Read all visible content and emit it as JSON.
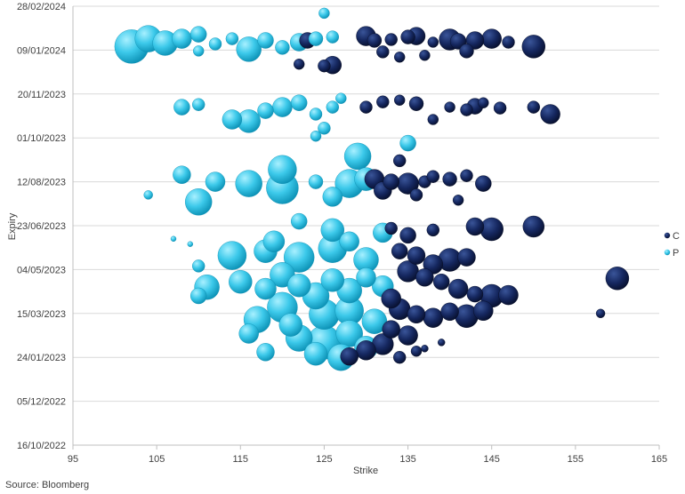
{
  "chart_data": {
    "type": "scatter",
    "subtype": "bubble-3d",
    "xlabel": "Strike",
    "ylabel": "Expiry",
    "xlim": [
      95,
      165
    ],
    "ylim": [
      "2022-10-16",
      "2024-02-28"
    ],
    "x_ticks": [
      95,
      105,
      115,
      125,
      135,
      145,
      155,
      165
    ],
    "y_ticks": [
      "28/02/2024",
      "09/01/2024",
      "20/11/2023",
      "01/10/2023",
      "12/08/2023",
      "23/06/2023",
      "04/05/2023",
      "15/03/2023",
      "24/01/2023",
      "05/12/2022",
      "16/10/2022"
    ],
    "grid": "horizontal",
    "legend_position": "right",
    "series": [
      {
        "name": "C",
        "color": "#0f1f52",
        "points": [
          {
            "x": 123,
            "y": "2024-01-20",
            "s": 18
          },
          {
            "x": 130,
            "y": "2024-01-25",
            "s": 22
          },
          {
            "x": 131,
            "y": "2024-01-20",
            "s": 16
          },
          {
            "x": 133,
            "y": "2024-01-21",
            "s": 14
          },
          {
            "x": 135,
            "y": "2024-01-24",
            "s": 16
          },
          {
            "x": 136,
            "y": "2024-01-25",
            "s": 20
          },
          {
            "x": 138,
            "y": "2024-01-18",
            "s": 12
          },
          {
            "x": 140,
            "y": "2024-01-21",
            "s": 24
          },
          {
            "x": 141,
            "y": "2024-01-19",
            "s": 18
          },
          {
            "x": 143,
            "y": "2024-01-20",
            "s": 20
          },
          {
            "x": 145,
            "y": "2024-01-22",
            "s": 22
          },
          {
            "x": 147,
            "y": "2024-01-18",
            "s": 14
          },
          {
            "x": 150,
            "y": "2024-01-13",
            "s": 26
          },
          {
            "x": 132,
            "y": "2024-01-07",
            "s": 14
          },
          {
            "x": 134,
            "y": "2024-01-01",
            "s": 12
          },
          {
            "x": 137,
            "y": "2024-01-03",
            "s": 12
          },
          {
            "x": 142,
            "y": "2024-01-08",
            "s": 16
          },
          {
            "x": 126,
            "y": "2023-12-23",
            "s": 20
          },
          {
            "x": 125,
            "y": "2023-12-22",
            "s": 14
          },
          {
            "x": 122,
            "y": "2023-12-24",
            "s": 12
          },
          {
            "x": 130,
            "y": "2023-11-05",
            "s": 14
          },
          {
            "x": 132,
            "y": "2023-11-11",
            "s": 14
          },
          {
            "x": 134,
            "y": "2023-11-13",
            "s": 12
          },
          {
            "x": 136,
            "y": "2023-11-09",
            "s": 16
          },
          {
            "x": 140,
            "y": "2023-11-05",
            "s": 12
          },
          {
            "x": 142,
            "y": "2023-11-02",
            "s": 14
          },
          {
            "x": 143,
            "y": "2023-11-06",
            "s": 18
          },
          {
            "x": 144,
            "y": "2023-11-10",
            "s": 12
          },
          {
            "x": 146,
            "y": "2023-11-04",
            "s": 14
          },
          {
            "x": 150,
            "y": "2023-11-05",
            "s": 14
          },
          {
            "x": 152,
            "y": "2023-10-28",
            "s": 22
          },
          {
            "x": 138,
            "y": "2023-10-22",
            "s": 12
          },
          {
            "x": 131,
            "y": "2023-08-15",
            "s": 22
          },
          {
            "x": 133,
            "y": "2023-08-12",
            "s": 18
          },
          {
            "x": 135,
            "y": "2023-08-10",
            "s": 24
          },
          {
            "x": 137,
            "y": "2023-08-12",
            "s": 14
          },
          {
            "x": 138,
            "y": "2023-08-18",
            "s": 14
          },
          {
            "x": 140,
            "y": "2023-08-15",
            "s": 16
          },
          {
            "x": 142,
            "y": "2023-08-19",
            "s": 14
          },
          {
            "x": 144,
            "y": "2023-08-10",
            "s": 18
          },
          {
            "x": 134,
            "y": "2023-09-05",
            "s": 14
          },
          {
            "x": 132,
            "y": "2023-08-02",
            "s": 20
          },
          {
            "x": 136,
            "y": "2023-07-28",
            "s": 14
          },
          {
            "x": 141,
            "y": "2023-07-22",
            "s": 12
          },
          {
            "x": 143,
            "y": "2023-06-22",
            "s": 20
          },
          {
            "x": 145,
            "y": "2023-06-19",
            "s": 26
          },
          {
            "x": 150,
            "y": "2023-06-22",
            "s": 24
          },
          {
            "x": 133,
            "y": "2023-06-20",
            "s": 14
          },
          {
            "x": 135,
            "y": "2023-06-12",
            "s": 18
          },
          {
            "x": 138,
            "y": "2023-06-18",
            "s": 14
          },
          {
            "x": 134,
            "y": "2023-05-25",
            "s": 18
          },
          {
            "x": 136,
            "y": "2023-05-20",
            "s": 20
          },
          {
            "x": 138,
            "y": "2023-05-10",
            "s": 22
          },
          {
            "x": 140,
            "y": "2023-05-15",
            "s": 26
          },
          {
            "x": 142,
            "y": "2023-05-18",
            "s": 20
          },
          {
            "x": 135,
            "y": "2023-05-02",
            "s": 24
          },
          {
            "x": 137,
            "y": "2023-04-25",
            "s": 20
          },
          {
            "x": 139,
            "y": "2023-04-20",
            "s": 18
          },
          {
            "x": 141,
            "y": "2023-04-12",
            "s": 22
          },
          {
            "x": 143,
            "y": "2023-04-06",
            "s": 18
          },
          {
            "x": 145,
            "y": "2023-04-04",
            "s": 26
          },
          {
            "x": 147,
            "y": "2023-04-05",
            "s": 22
          },
          {
            "x": 133,
            "y": "2023-04-01",
            "s": 22
          },
          {
            "x": 134,
            "y": "2023-03-20",
            "s": 24
          },
          {
            "x": 136,
            "y": "2023-03-14",
            "s": 20
          },
          {
            "x": 138,
            "y": "2023-03-10",
            "s": 22
          },
          {
            "x": 140,
            "y": "2023-03-17",
            "s": 20
          },
          {
            "x": 142,
            "y": "2023-03-12",
            "s": 26
          },
          {
            "x": 144,
            "y": "2023-03-18",
            "s": 22
          },
          {
            "x": 133,
            "y": "2023-02-25",
            "s": 20
          },
          {
            "x": 135,
            "y": "2023-02-18",
            "s": 22
          },
          {
            "x": 132,
            "y": "2023-02-08",
            "s": 24
          },
          {
            "x": 130,
            "y": "2023-02-01",
            "s": 22
          },
          {
            "x": 134,
            "y": "2023-01-24",
            "s": 14
          },
          {
            "x": 136,
            "y": "2023-01-31",
            "s": 12
          },
          {
            "x": 160,
            "y": "2023-04-24",
            "s": 26
          },
          {
            "x": 158,
            "y": "2023-03-15",
            "s": 10
          },
          {
            "x": 139,
            "y": "2023-02-10",
            "s": 8
          },
          {
            "x": 137,
            "y": "2023-02-03",
            "s": 8
          },
          {
            "x": 128,
            "y": "2023-01-25",
            "s": 20
          }
        ]
      },
      {
        "name": "P",
        "color": "#2ac3e6",
        "points": [
          {
            "x": 102,
            "y": "2024-01-13",
            "s": 38
          },
          {
            "x": 104,
            "y": "2024-01-22",
            "s": 30
          },
          {
            "x": 106,
            "y": "2024-01-17",
            "s": 28
          },
          {
            "x": 108,
            "y": "2024-01-22",
            "s": 22
          },
          {
            "x": 110,
            "y": "2024-01-27",
            "s": 18
          },
          {
            "x": 112,
            "y": "2024-01-16",
            "s": 14
          },
          {
            "x": 114,
            "y": "2024-01-22",
            "s": 14
          },
          {
            "x": 116,
            "y": "2024-01-10",
            "s": 28
          },
          {
            "x": 118,
            "y": "2024-01-20",
            "s": 18
          },
          {
            "x": 120,
            "y": "2024-01-12",
            "s": 16
          },
          {
            "x": 122,
            "y": "2024-01-18",
            "s": 20
          },
          {
            "x": 124,
            "y": "2024-01-22",
            "s": 16
          },
          {
            "x": 125,
            "y": "2024-02-20",
            "s": 12
          },
          {
            "x": 126,
            "y": "2024-01-24",
            "s": 14
          },
          {
            "x": 110,
            "y": "2024-01-08",
            "s": 12
          },
          {
            "x": 108,
            "y": "2023-11-05",
            "s": 18
          },
          {
            "x": 110,
            "y": "2023-11-08",
            "s": 14
          },
          {
            "x": 114,
            "y": "2023-10-22",
            "s": 22
          },
          {
            "x": 116,
            "y": "2023-10-20",
            "s": 26
          },
          {
            "x": 118,
            "y": "2023-11-01",
            "s": 18
          },
          {
            "x": 120,
            "y": "2023-11-05",
            "s": 22
          },
          {
            "x": 122,
            "y": "2023-11-10",
            "s": 18
          },
          {
            "x": 124,
            "y": "2023-10-28",
            "s": 14
          },
          {
            "x": 126,
            "y": "2023-11-05",
            "s": 14
          },
          {
            "x": 127,
            "y": "2023-11-15",
            "s": 12
          },
          {
            "x": 124,
            "y": "2023-10-03",
            "s": 12
          },
          {
            "x": 125,
            "y": "2023-10-12",
            "s": 14
          },
          {
            "x": 135,
            "y": "2023-09-25",
            "s": 18
          },
          {
            "x": 129,
            "y": "2023-09-10",
            "s": 30
          },
          {
            "x": 120,
            "y": "2023-08-26",
            "s": 32
          },
          {
            "x": 116,
            "y": "2023-08-10",
            "s": 30
          },
          {
            "x": 120,
            "y": "2023-08-05",
            "s": 36
          },
          {
            "x": 108,
            "y": "2023-08-20",
            "s": 20
          },
          {
            "x": 110,
            "y": "2023-07-20",
            "s": 30
          },
          {
            "x": 112,
            "y": "2023-08-12",
            "s": 22
          },
          {
            "x": 104,
            "y": "2023-07-28",
            "s": 10
          },
          {
            "x": 128,
            "y": "2023-08-10",
            "s": 32
          },
          {
            "x": 130,
            "y": "2023-08-15",
            "s": 26
          },
          {
            "x": 126,
            "y": "2023-07-26",
            "s": 22
          },
          {
            "x": 124,
            "y": "2023-08-12",
            "s": 16
          },
          {
            "x": 122,
            "y": "2023-06-28",
            "s": 18
          },
          {
            "x": 126,
            "y": "2023-06-18",
            "s": 26
          },
          {
            "x": 128,
            "y": "2023-06-05",
            "s": 22
          },
          {
            "x": 132,
            "y": "2023-06-15",
            "s": 22
          },
          {
            "x": 119,
            "y": "2023-06-05",
            "s": 24
          },
          {
            "x": 114,
            "y": "2023-05-20",
            "s": 32
          },
          {
            "x": 118,
            "y": "2023-05-25",
            "s": 26
          },
          {
            "x": 122,
            "y": "2023-05-18",
            "s": 34
          },
          {
            "x": 126,
            "y": "2023-05-28",
            "s": 32
          },
          {
            "x": 130,
            "y": "2023-05-15",
            "s": 28
          },
          {
            "x": 111,
            "y": "2023-04-14",
            "s": 28
          },
          {
            "x": 115,
            "y": "2023-04-20",
            "s": 26
          },
          {
            "x": 118,
            "y": "2023-04-12",
            "s": 24
          },
          {
            "x": 120,
            "y": "2023-04-28",
            "s": 28
          },
          {
            "x": 122,
            "y": "2023-04-16",
            "s": 26
          },
          {
            "x": 124,
            "y": "2023-04-04",
            "s": 30
          },
          {
            "x": 126,
            "y": "2023-04-22",
            "s": 26
          },
          {
            "x": 128,
            "y": "2023-04-10",
            "s": 28
          },
          {
            "x": 130,
            "y": "2023-04-25",
            "s": 22
          },
          {
            "x": 132,
            "y": "2023-04-15",
            "s": 24
          },
          {
            "x": 120,
            "y": "2023-03-22",
            "s": 34
          },
          {
            "x": 117,
            "y": "2023-03-08",
            "s": 30
          },
          {
            "x": 121,
            "y": "2023-03-02",
            "s": 26
          },
          {
            "x": 125,
            "y": "2023-03-14",
            "s": 34
          },
          {
            "x": 128,
            "y": "2023-03-18",
            "s": 32
          },
          {
            "x": 131,
            "y": "2023-03-06",
            "s": 28
          },
          {
            "x": 122,
            "y": "2023-02-15",
            "s": 30
          },
          {
            "x": 125,
            "y": "2023-02-10",
            "s": 38
          },
          {
            "x": 128,
            "y": "2023-02-20",
            "s": 30
          },
          {
            "x": 130,
            "y": "2023-02-04",
            "s": 26
          },
          {
            "x": 124,
            "y": "2023-01-28",
            "s": 26
          },
          {
            "x": 127,
            "y": "2023-01-24",
            "s": 30
          },
          {
            "x": 116,
            "y": "2023-02-20",
            "s": 22
          },
          {
            "x": 118,
            "y": "2023-01-30",
            "s": 20
          },
          {
            "x": 110,
            "y": "2023-04-04",
            "s": 18
          },
          {
            "x": 107,
            "y": "2023-06-08",
            "s": 6
          },
          {
            "x": 109,
            "y": "2023-06-02",
            "s": 6
          },
          {
            "x": 110,
            "y": "2023-05-08",
            "s": 14
          }
        ]
      }
    ]
  },
  "source_note": "Source: Bloomberg"
}
